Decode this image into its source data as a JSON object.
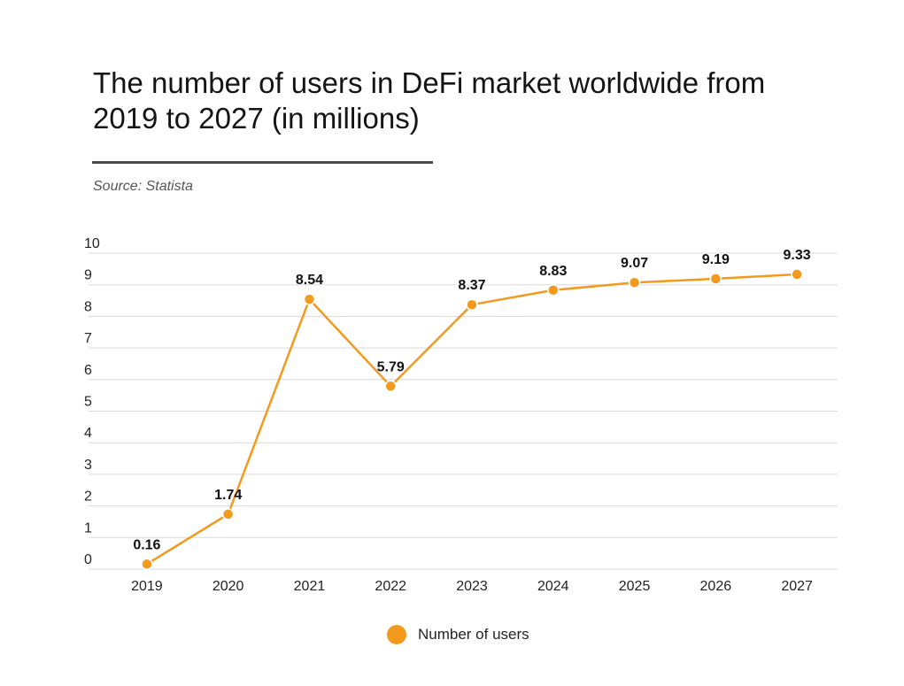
{
  "header": {
    "title": "The number of users in DeFi market worldwide from 2019 to 2027 (in millions)",
    "source": "Source: Statista"
  },
  "colors": {
    "series": "#F39A1E",
    "grid": "#d9d9d9",
    "rule": "#4a4a4a"
  },
  "chart_data": {
    "type": "line",
    "title": "The number of users in DeFi market worldwide from 2019 to 2027 (in millions)",
    "xlabel": "",
    "ylabel": "",
    "categories": [
      "2019",
      "2020",
      "2021",
      "2022",
      "2023",
      "2024",
      "2025",
      "2026",
      "2027"
    ],
    "series": [
      {
        "name": "Number of users",
        "values": [
          0.16,
          1.74,
          8.54,
          5.79,
          8.37,
          8.83,
          9.07,
          9.19,
          9.33
        ],
        "labels": [
          "0.16",
          "1.74",
          "8.54",
          "5.79",
          "8.37",
          "8.83",
          "9.07",
          "9.19",
          "9.33"
        ]
      }
    ],
    "yticks": [
      "0",
      "1",
      "2",
      "3",
      "4",
      "5",
      "6",
      "7",
      "8",
      "9",
      "10"
    ],
    "ylim": [
      0,
      10
    ],
    "grid": true,
    "legend": "bottom-center"
  }
}
